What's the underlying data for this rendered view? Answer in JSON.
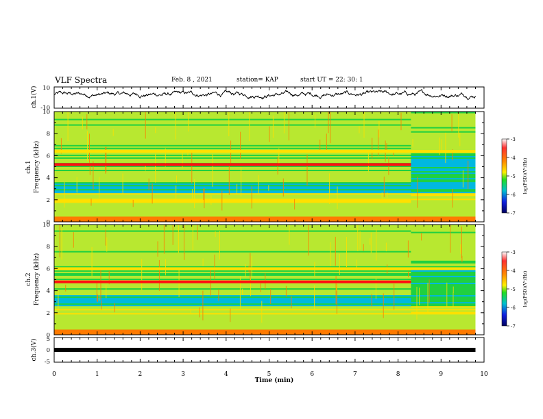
{
  "header": {
    "title": "VLF Spectra",
    "date": "Feb. 8 , 2021",
    "station": "station= KAP",
    "start_ut": "start UT = 22: 30: 1"
  },
  "chart_data": [
    {
      "id": "ch1-waveform",
      "type": "line",
      "ylabel": "ch.1(V)",
      "ylim": [
        -10,
        10
      ],
      "ytick_labels": [
        "10",
        "-10"
      ],
      "xlim": [
        0,
        10
      ],
      "approx_level": 3
    },
    {
      "id": "ch1-spectrogram",
      "type": "heatmap",
      "ylabel_line1": "ch.1",
      "ylabel_line2": "Frequency (kHz)",
      "ylim": [
        0,
        10
      ],
      "ytick_labels": [
        "0",
        "2",
        "4",
        "6",
        "8",
        "10"
      ],
      "xlim": [
        0,
        9.8
      ],
      "colorbar": {
        "label": "log(PSD)(V²/Hz)",
        "range": [
          -7,
          -3
        ],
        "tick_labels": [
          "-3",
          "-4",
          "-5",
          "-6",
          "-7"
        ]
      },
      "emission_bands": [
        {
          "freq_khz": 5.2,
          "end_min": 8.3,
          "level": -3.3
        },
        {
          "freq_khz": 6.4,
          "end_min": 9.8,
          "level": -4.2
        }
      ],
      "step_change_min": 8.3
    },
    {
      "id": "ch2-spectrogram",
      "type": "heatmap",
      "ylabel_line1": "ch.2",
      "ylabel_line2": "Frequency (kHz)",
      "ylim": [
        0,
        10
      ],
      "ytick_labels": [
        "0",
        "2",
        "4",
        "6",
        "8",
        "10"
      ],
      "xlim": [
        0,
        9.8
      ],
      "colorbar": {
        "label": "log(PSD)(V²/Hz)",
        "range": [
          -7,
          -3
        ],
        "tick_labels": [
          "-3",
          "-4",
          "-5",
          "-6",
          "-7"
        ]
      },
      "emission_bands": [
        {
          "freq_khz": 4.8,
          "end_min": 8.3,
          "level": -3.2
        },
        {
          "freq_khz": 6.0,
          "end_min": 9.8,
          "level": -4.2
        }
      ],
      "step_change_min": 8.3
    },
    {
      "id": "ch3-waveform",
      "type": "line",
      "ylabel": "ch.3(V)",
      "ylim": [
        -5,
        5
      ],
      "ytick_labels": [
        "5",
        "0",
        "-5"
      ],
      "xlim": [
        0,
        10
      ],
      "approx_level": 0
    }
  ],
  "xaxis": {
    "label": "Time (min)",
    "tick_labels": [
      "0",
      "1",
      "2",
      "3",
      "4",
      "5",
      "6",
      "7",
      "8",
      "9",
      "10"
    ]
  }
}
